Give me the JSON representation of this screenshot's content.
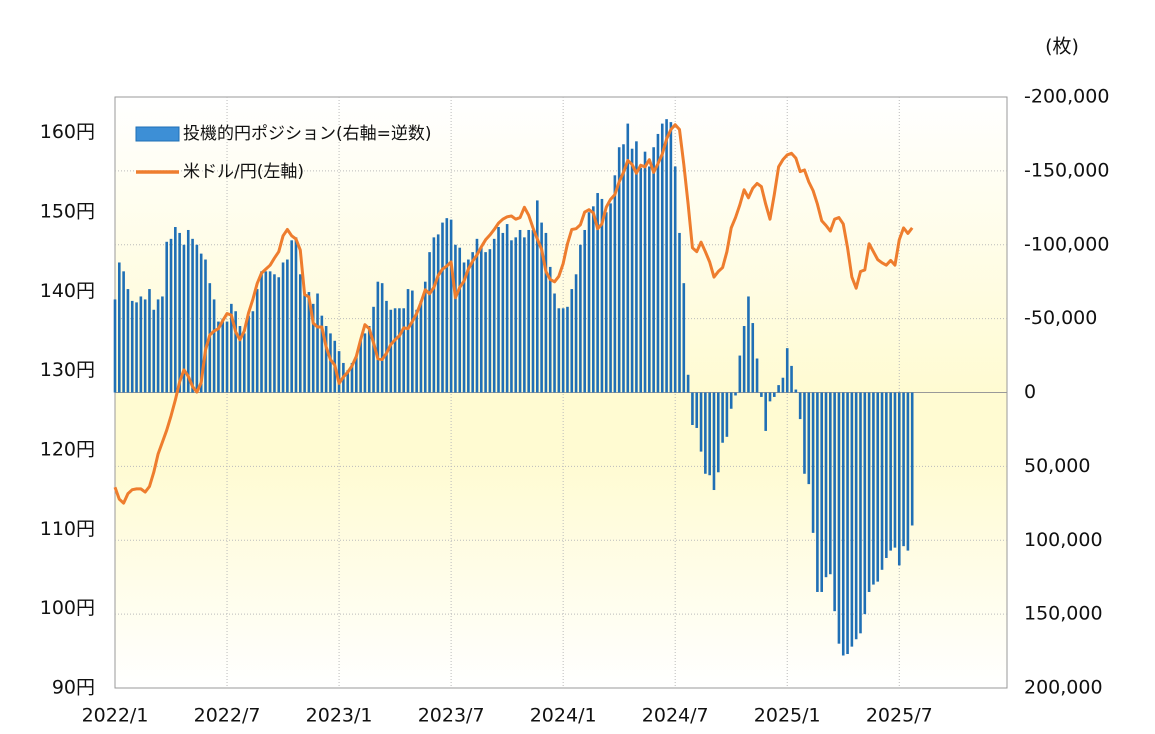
{
  "chart_data": {
    "type": "bar",
    "y2label": "(枚)",
    "ylim": [
      90,
      164.5
    ],
    "yticks": [
      {
        "value": 90,
        "label": "90円"
      },
      {
        "value": 100,
        "label": "100円"
      },
      {
        "value": 110,
        "label": "110円"
      },
      {
        "value": 120,
        "label": "120円"
      },
      {
        "value": 130,
        "label": "130円"
      },
      {
        "value": 140,
        "label": "140円"
      },
      {
        "value": 150,
        "label": "150円"
      },
      {
        "value": 160,
        "label": "160円"
      }
    ],
    "y2lim": [
      200000,
      -200000
    ],
    "y2ticks": [
      {
        "value": -200000,
        "label": "-200,000"
      },
      {
        "value": -150000,
        "label": "-150,000"
      },
      {
        "value": -100000,
        "label": "-100,000"
      },
      {
        "value": -50000,
        "label": "-50,000"
      },
      0,
      {
        "value": 50000,
        "label": "50,000"
      },
      {
        "value": 100000,
        "label": "100,000"
      },
      {
        "value": 150000,
        "label": "150,000"
      },
      {
        "value": 200000,
        "label": "200,000"
      }
    ],
    "y2tick_negative_color": "#e00000",
    "grid": true,
    "legend": "upper left",
    "categories": [
      "2022/1",
      null,
      null,
      null,
      null,
      null,
      null,
      null,
      null,
      null,
      null,
      null,
      null,
      null,
      null,
      null,
      null,
      null,
      null,
      null,
      null,
      null,
      null,
      null,
      null,
      null,
      "2022/7",
      null,
      null,
      null,
      null,
      null,
      null,
      null,
      null,
      null,
      null,
      null,
      null,
      null,
      null,
      null,
      null,
      null,
      null,
      null,
      null,
      null,
      null,
      null,
      null,
      null,
      "2023/1",
      null,
      null,
      null,
      null,
      null,
      null,
      null,
      null,
      null,
      null,
      null,
      null,
      null,
      null,
      null,
      null,
      null,
      null,
      null,
      null,
      null,
      null,
      null,
      null,
      null,
      "2023/7",
      null,
      null,
      null,
      null,
      null,
      null,
      null,
      null,
      null,
      null,
      null,
      null,
      null,
      null,
      null,
      null,
      null,
      null,
      null,
      null,
      null,
      null,
      null,
      null,
      null,
      "2024/1",
      null,
      null,
      null,
      null,
      null,
      null,
      null,
      null,
      null,
      null,
      null,
      null,
      null,
      null,
      null,
      null,
      null,
      null,
      null,
      null,
      null,
      null,
      null,
      null,
      null,
      "2024/7",
      null,
      null,
      null,
      null,
      null,
      null,
      null,
      null,
      null,
      null,
      null,
      null,
      null,
      null,
      null,
      null,
      null,
      null,
      null,
      null,
      null,
      null,
      null,
      null,
      null,
      "2025/1",
      null,
      null,
      null,
      null,
      null,
      null,
      null,
      null,
      null,
      null,
      null,
      null,
      null,
      null,
      null,
      null,
      null,
      null,
      null,
      null,
      null,
      null,
      null,
      null,
      null,
      "2025/7",
      null,
      null,
      null,
      null,
      null,
      null,
      null,
      null,
      null,
      null,
      null,
      null,
      null,
      null,
      null,
      null,
      null,
      null,
      null,
      null,
      null,
      null,
      null,
      null
    ],
    "series": [
      {
        "name": "投機的円ポジション(右軸=逆数)",
        "type": "bar",
        "axis": "y2",
        "color": "#1f6fb5",
        "values": [
          -63000,
          -88000,
          -82000,
          -70000,
          -62000,
          -61000,
          -65000,
          -63000,
          -70000,
          -56000,
          -63000,
          -65000,
          -102000,
          -104000,
          -112000,
          -108000,
          -100000,
          -110000,
          -104000,
          -100000,
          -94000,
          -90000,
          -74000,
          -63000,
          -48000,
          -50000,
          -48000,
          -60000,
          -55000,
          -45000,
          -40000,
          -52000,
          -55000,
          -70000,
          -82000,
          -82000,
          -82000,
          -80000,
          -78000,
          -88000,
          -90000,
          -103000,
          -105000,
          -80000,
          -66000,
          -68000,
          -60000,
          -67000,
          -52000,
          -45000,
          -40000,
          -35000,
          -28000,
          -20000,
          -15000,
          -20000,
          -25000,
          -35000,
          -40000,
          -45000,
          -58000,
          -75000,
          -74000,
          -62000,
          -56000,
          -57000,
          -57000,
          -57000,
          -70000,
          -69000,
          -56000,
          -62000,
          -75000,
          -95000,
          -105000,
          -107000,
          -115000,
          -118000,
          -117000,
          -100000,
          -98000,
          -88000,
          -90000,
          -95000,
          -104000,
          -98000,
          -95000,
          -97000,
          -104000,
          -112000,
          -108000,
          -114000,
          -103000,
          -105000,
          -110000,
          -105000,
          -110000,
          -110000,
          -130000,
          -115000,
          -108000,
          -85000,
          -67000,
          -57000,
          -57000,
          -58000,
          -70000,
          -80000,
          -100000,
          -110000,
          -122000,
          -126000,
          -135000,
          -131000,
          -122000,
          -128000,
          -147000,
          -166000,
          -168000,
          -182000,
          -165000,
          -170000,
          -152000,
          -163000,
          -153000,
          -166000,
          -175000,
          -182000,
          -185000,
          -183000,
          -153000,
          -108000,
          -74000,
          -12000,
          22000,
          24000,
          40000,
          55000,
          56000,
          66000,
          54000,
          34000,
          30000,
          11000,
          2000,
          -25000,
          -45000,
          -65000,
          -47000,
          -23000,
          3000,
          26000,
          6000,
          3000,
          -5000,
          -10000,
          -30000,
          -18000,
          -2000,
          18000,
          55000,
          62000,
          95000,
          135000,
          135000,
          125000,
          123000,
          148000,
          170000,
          178000,
          177000,
          172000,
          167000,
          163000,
          150000,
          135000,
          130000,
          128000,
          120000,
          112000,
          107000,
          105000,
          117000,
          104000,
          107000,
          90000,
          null,
          null,
          null,
          null,
          null,
          null,
          null,
          null,
          null,
          null,
          null,
          null,
          null,
          null,
          null,
          null,
          null,
          null,
          null,
          null,
          null
        ]
      },
      {
        "name": "米ドル/円(左軸)",
        "type": "line",
        "color": "#ee7d2e",
        "values": [
          115.3,
          113.8,
          113.3,
          114.5,
          115.0,
          115.1,
          115.1,
          114.7,
          115.4,
          117.2,
          119.5,
          121.0,
          122.5,
          124.3,
          126.3,
          128.6,
          130.1,
          129.3,
          128.0,
          127.3,
          128.5,
          132.6,
          134.5,
          135.0,
          135.3,
          136.3,
          137.2,
          137.0,
          134.9,
          133.9,
          135.0,
          137.3,
          139.0,
          141.0,
          142.3,
          142.8,
          143.3,
          144.2,
          145.0,
          147.0,
          147.8,
          147.0,
          146.6,
          145.2,
          139.6,
          139.3,
          136.0,
          135.5,
          135.5,
          133.0,
          131.4,
          130.7,
          128.4,
          129.2,
          129.8,
          130.6,
          131.8,
          133.9,
          135.8,
          135.3,
          133.5,
          131.5,
          131.4,
          132.2,
          133.3,
          133.9,
          134.4,
          135.4,
          135.3,
          136.2,
          137.2,
          138.6,
          140.2,
          139.7,
          140.5,
          142.0,
          142.8,
          143.2,
          143.7,
          139.2,
          140.5,
          141.3,
          142.8,
          143.8,
          144.6,
          145.6,
          146.5,
          147.1,
          147.8,
          148.6,
          149.1,
          149.4,
          149.5,
          149.1,
          149.3,
          150.6,
          149.6,
          148.0,
          146.6,
          145.3,
          142.5,
          141.5,
          141.2,
          141.9,
          143.5,
          146.0,
          147.8,
          147.9,
          148.4,
          150.0,
          150.3,
          149.9,
          147.9,
          148.5,
          150.6,
          151.6,
          152.2,
          153.8,
          155.0,
          156.5,
          156.0,
          154.9,
          155.9,
          155.7,
          156.6,
          155.0,
          156.1,
          157.3,
          159.2,
          160.4,
          161.0,
          160.4,
          156.0,
          151.0,
          145.5,
          145.0,
          146.2,
          145.0,
          143.7,
          141.8,
          142.5,
          143.0,
          145.0,
          148.0,
          149.3,
          150.9,
          152.8,
          151.8,
          153.0,
          153.6,
          153.2,
          151.0,
          149.1,
          152.2,
          155.7,
          156.6,
          157.2,
          157.4,
          156.8,
          155.1,
          155.3,
          153.8,
          152.7,
          151.0,
          148.9,
          148.3,
          147.6,
          149.1,
          149.3,
          148.5,
          145.5,
          141.8,
          140.4,
          142.5,
          142.7,
          146.0,
          145.0,
          144.0,
          143.6,
          143.3,
          143.9,
          143.3,
          146.5,
          148.0,
          147.3,
          148.0,
          null,
          null,
          null,
          null,
          null,
          null,
          null,
          null,
          null,
          null,
          null,
          null,
          null,
          null,
          null,
          null,
          null,
          null,
          null,
          null,
          null
        ]
      }
    ]
  }
}
